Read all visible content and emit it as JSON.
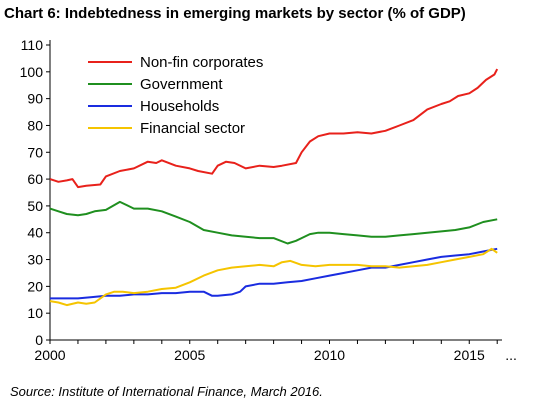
{
  "title": "Chart 6:  Indebtedness in emerging markets by sector (% of GDP)",
  "source": "Source:  Institute of International Finance, March 2016.",
  "chart_data": {
    "type": "line",
    "title": "Chart 6:  Indebtedness in emerging markets by sector (% of GDP)",
    "xlabel": "",
    "ylabel": "",
    "xlim": [
      2000,
      2016.1
    ],
    "ylim": [
      0,
      110
    ],
    "xticks": [
      "2000",
      "2005",
      "2010",
      "2015"
    ],
    "x_trailing_label": "...",
    "yticks": [
      0,
      10,
      20,
      30,
      40,
      50,
      60,
      70,
      80,
      90,
      100,
      110
    ],
    "grid": false,
    "legend_position": "top-left",
    "series": [
      {
        "name": "Non-fin corporates",
        "color": "#e8211b",
        "points": [
          [
            2000,
            60
          ],
          [
            2000.3,
            59
          ],
          [
            2000.6,
            59.5
          ],
          [
            2000.8,
            60
          ],
          [
            2001,
            57
          ],
          [
            2001.3,
            57.5
          ],
          [
            2001.8,
            58
          ],
          [
            2002,
            61
          ],
          [
            2002.5,
            63
          ],
          [
            2003,
            64
          ],
          [
            2003.5,
            66.5
          ],
          [
            2003.8,
            66
          ],
          [
            2004,
            67
          ],
          [
            2004.5,
            65
          ],
          [
            2005,
            64
          ],
          [
            2005.3,
            63
          ],
          [
            2005.8,
            62
          ],
          [
            2006,
            65
          ],
          [
            2006.3,
            66.5
          ],
          [
            2006.6,
            66
          ],
          [
            2007,
            64
          ],
          [
            2007.5,
            65
          ],
          [
            2008,
            64.5
          ],
          [
            2008.3,
            65
          ],
          [
            2008.8,
            66
          ],
          [
            2009,
            70
          ],
          [
            2009.3,
            74
          ],
          [
            2009.6,
            76
          ],
          [
            2010,
            77
          ],
          [
            2010.5,
            77
          ],
          [
            2011,
            77.5
          ],
          [
            2011.5,
            77
          ],
          [
            2012,
            78
          ],
          [
            2012.5,
            80
          ],
          [
            2013,
            82
          ],
          [
            2013.5,
            86
          ],
          [
            2014,
            88
          ],
          [
            2014.3,
            89
          ],
          [
            2014.6,
            91
          ],
          [
            2015,
            92
          ],
          [
            2015.3,
            94
          ],
          [
            2015.6,
            97
          ],
          [
            2015.9,
            99
          ],
          [
            2016,
            101
          ]
        ]
      },
      {
        "name": "Government",
        "color": "#1f8f1f",
        "points": [
          [
            2000,
            49
          ],
          [
            2000.3,
            48
          ],
          [
            2000.6,
            47
          ],
          [
            2001,
            46.5
          ],
          [
            2001.3,
            47
          ],
          [
            2001.6,
            48
          ],
          [
            2002,
            48.5
          ],
          [
            2002.5,
            51.5
          ],
          [
            2002.8,
            50
          ],
          [
            2003,
            49
          ],
          [
            2003.5,
            49
          ],
          [
            2004,
            48
          ],
          [
            2004.5,
            46
          ],
          [
            2005,
            44
          ],
          [
            2005.5,
            41
          ],
          [
            2006,
            40
          ],
          [
            2006.5,
            39
          ],
          [
            2007,
            38.5
          ],
          [
            2007.5,
            38
          ],
          [
            2008,
            38
          ],
          [
            2008.5,
            36
          ],
          [
            2008.8,
            37
          ],
          [
            2009,
            38
          ],
          [
            2009.3,
            39.5
          ],
          [
            2009.6,
            40
          ],
          [
            2010,
            40
          ],
          [
            2010.5,
            39.5
          ],
          [
            2011,
            39
          ],
          [
            2011.5,
            38.5
          ],
          [
            2012,
            38.5
          ],
          [
            2012.5,
            39
          ],
          [
            2013,
            39.5
          ],
          [
            2013.5,
            40
          ],
          [
            2014,
            40.5
          ],
          [
            2014.5,
            41
          ],
          [
            2015,
            42
          ],
          [
            2015.5,
            44
          ],
          [
            2016,
            45
          ]
        ]
      },
      {
        "name": "Households",
        "color": "#1a2ce0",
        "points": [
          [
            2000,
            15.5
          ],
          [
            2000.5,
            15.5
          ],
          [
            2001,
            15.5
          ],
          [
            2001.5,
            16
          ],
          [
            2002,
            16.5
          ],
          [
            2002.5,
            16.5
          ],
          [
            2003,
            17
          ],
          [
            2003.5,
            17
          ],
          [
            2004,
            17.5
          ],
          [
            2004.5,
            17.5
          ],
          [
            2005,
            18
          ],
          [
            2005.5,
            18
          ],
          [
            2005.8,
            16.5
          ],
          [
            2006,
            16.5
          ],
          [
            2006.5,
            17
          ],
          [
            2006.8,
            18
          ],
          [
            2007,
            20
          ],
          [
            2007.5,
            21
          ],
          [
            2008,
            21
          ],
          [
            2008.5,
            21.5
          ],
          [
            2009,
            22
          ],
          [
            2009.5,
            23
          ],
          [
            2010,
            24
          ],
          [
            2010.5,
            25
          ],
          [
            2011,
            26
          ],
          [
            2011.5,
            27
          ],
          [
            2012,
            27
          ],
          [
            2012.5,
            28
          ],
          [
            2013,
            29
          ],
          [
            2013.5,
            30
          ],
          [
            2014,
            31
          ],
          [
            2014.5,
            31.5
          ],
          [
            2015,
            32
          ],
          [
            2015.5,
            33
          ],
          [
            2016,
            34
          ]
        ]
      },
      {
        "name": "Financial sector",
        "color": "#f5c400",
        "points": [
          [
            2000,
            14.5
          ],
          [
            2000.3,
            14
          ],
          [
            2000.6,
            13
          ],
          [
            2001,
            14
          ],
          [
            2001.3,
            13.5
          ],
          [
            2001.6,
            14
          ],
          [
            2002,
            17
          ],
          [
            2002.3,
            18
          ],
          [
            2002.6,
            18
          ],
          [
            2003,
            17.5
          ],
          [
            2003.5,
            18
          ],
          [
            2004,
            19
          ],
          [
            2004.5,
            19.5
          ],
          [
            2005,
            21.5
          ],
          [
            2005.5,
            24
          ],
          [
            2006,
            26
          ],
          [
            2006.5,
            27
          ],
          [
            2007,
            27.5
          ],
          [
            2007.5,
            28
          ],
          [
            2008,
            27.5
          ],
          [
            2008.3,
            29
          ],
          [
            2008.6,
            29.5
          ],
          [
            2009,
            28
          ],
          [
            2009.5,
            27.5
          ],
          [
            2010,
            28
          ],
          [
            2010.5,
            28
          ],
          [
            2011,
            28
          ],
          [
            2011.5,
            27.5
          ],
          [
            2012,
            27.5
          ],
          [
            2012.5,
            27
          ],
          [
            2013,
            27.5
          ],
          [
            2013.5,
            28
          ],
          [
            2014,
            29
          ],
          [
            2014.5,
            30
          ],
          [
            2015,
            31
          ],
          [
            2015.5,
            32
          ],
          [
            2015.8,
            34
          ],
          [
            2016,
            32.5
          ]
        ]
      }
    ]
  }
}
